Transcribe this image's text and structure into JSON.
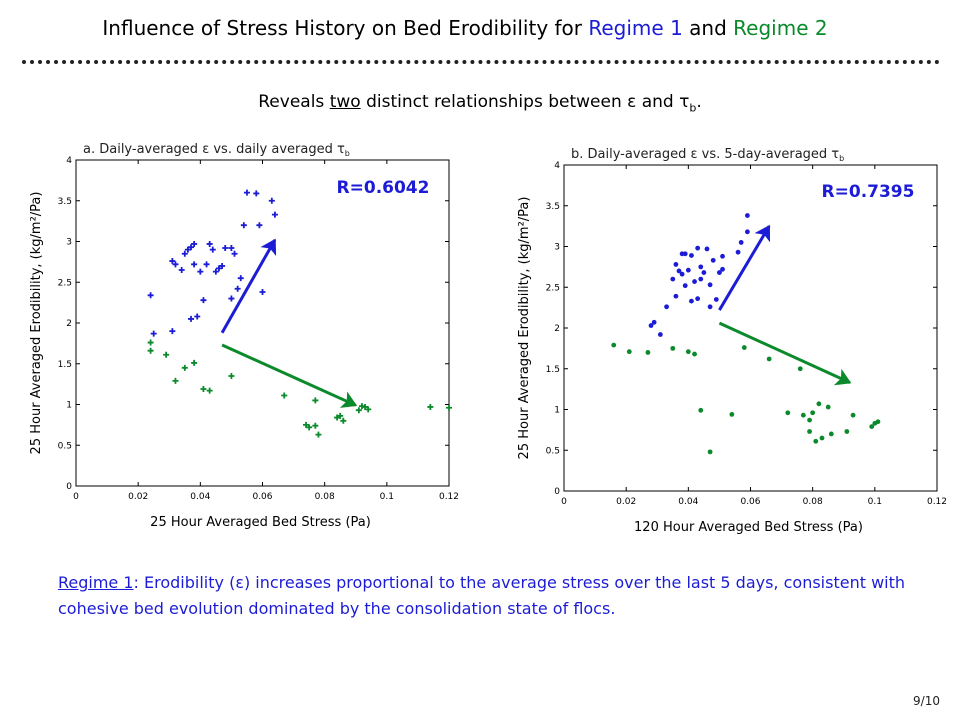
{
  "slide": {
    "title_prefix": "Influence of Stress History on Bed Erodibility for ",
    "title_regime1": "Regime 1",
    "title_and": " and ",
    "title_regime2": "Regime 2",
    "subtitle_prefix": "Reveals ",
    "subtitle_underlined": "two",
    "subtitle_suffix": " distinct relationships between ε and τ",
    "subtitle_sub": "b",
    "subtitle_end": ".",
    "footnote_label": "Regime 1",
    "footnote_text": ": Erodibility (ε) increases proportional to the average stress over the last 5 days, consistent with cohesive bed evolution dominated by the consolidation state of flocs.",
    "page_number": "9/10"
  },
  "colors": {
    "regime1": "#1c1cd6",
    "regime2": "#0a8a2a",
    "r_label": "#1c1cd6"
  },
  "chart_data": [
    {
      "type": "scatter",
      "title": "a. Daily-averaged ε vs. daily averaged τ",
      "title_sub": "b",
      "xlabel": "25 Hour Averaged Bed Stress (Pa)",
      "ylabel": "25 Hour Averaged Erodibility, (kg/m²/Pa)",
      "xlim": [
        0,
        0.12
      ],
      "ylim": [
        0,
        4
      ],
      "xticks": [
        "0",
        "0.02",
        "0.04",
        "0.06",
        "0.08",
        "0.1",
        "0.12"
      ],
      "yticks": [
        "0",
        "0.5",
        "1",
        "1.5",
        "2",
        "2.5",
        "3",
        "3.5",
        "4"
      ],
      "marker": "plus",
      "annotation": "R=0.6042",
      "series": [
        {
          "color_key": "regime1",
          "points": [
            [
              0.024,
              2.34
            ],
            [
              0.025,
              1.87
            ],
            [
              0.031,
              1.9
            ],
            [
              0.031,
              2.76
            ],
            [
              0.032,
              2.72
            ],
            [
              0.034,
              2.65
            ],
            [
              0.035,
              2.85
            ],
            [
              0.036,
              2.9
            ],
            [
              0.037,
              2.93
            ],
            [
              0.038,
              2.97
            ],
            [
              0.037,
              2.05
            ],
            [
              0.038,
              2.72
            ],
            [
              0.039,
              2.08
            ],
            [
              0.04,
              2.63
            ],
            [
              0.041,
              2.28
            ],
            [
              0.042,
              2.72
            ],
            [
              0.043,
              2.97
            ],
            [
              0.044,
              2.9
            ],
            [
              0.045,
              2.63
            ],
            [
              0.046,
              2.67
            ],
            [
              0.047,
              2.7
            ],
            [
              0.048,
              2.92
            ],
            [
              0.05,
              2.92
            ],
            [
              0.05,
              2.3
            ],
            [
              0.051,
              2.85
            ],
            [
              0.052,
              2.42
            ],
            [
              0.053,
              2.55
            ],
            [
              0.054,
              3.2
            ],
            [
              0.055,
              3.6
            ],
            [
              0.058,
              3.59
            ],
            [
              0.059,
              3.2
            ],
            [
              0.06,
              2.38
            ],
            [
              0.063,
              3.5
            ],
            [
              0.064,
              3.33
            ]
          ]
        },
        {
          "color_key": "regime2",
          "points": [
            [
              0.024,
              1.66
            ],
            [
              0.024,
              1.76
            ],
            [
              0.029,
              1.61
            ],
            [
              0.032,
              1.29
            ],
            [
              0.035,
              1.45
            ],
            [
              0.038,
              1.51
            ],
            [
              0.041,
              1.19
            ],
            [
              0.043,
              1.17
            ],
            [
              0.05,
              1.35
            ],
            [
              0.067,
              1.11
            ],
            [
              0.074,
              0.75
            ],
            [
              0.075,
              0.72
            ],
            [
              0.077,
              1.05
            ],
            [
              0.077,
              0.74
            ],
            [
              0.078,
              0.63
            ],
            [
              0.084,
              0.84
            ],
            [
              0.085,
              0.86
            ],
            [
              0.086,
              0.8
            ],
            [
              0.091,
              0.93
            ],
            [
              0.092,
              0.98
            ],
            [
              0.093,
              0.97
            ],
            [
              0.094,
              0.94
            ],
            [
              0.114,
              0.97
            ],
            [
              0.12,
              0.96
            ]
          ]
        }
      ],
      "arrows": [
        {
          "color_key": "regime1",
          "from": [
            0.047,
            1.88
          ],
          "to": [
            0.064,
            3.02
          ]
        },
        {
          "color_key": "regime2",
          "from": [
            0.047,
            1.73
          ],
          "to": [
            0.09,
            0.99
          ]
        }
      ]
    },
    {
      "type": "scatter",
      "title": "b. Daily-averaged ε vs. 5-day-averaged τ",
      "title_sub": "b",
      "xlabel": "120 Hour Averaged Bed Stress (Pa)",
      "ylabel": "25 Hour Averaged Erodibility, (kg/m²/Pa)",
      "xlim": [
        0,
        0.12
      ],
      "ylim": [
        0,
        4
      ],
      "xticks": [
        "0",
        "0.02",
        "0.04",
        "0.06",
        "0.08",
        "0.1",
        "0.12"
      ],
      "yticks": [
        "0",
        "0.5",
        "1",
        "1.5",
        "2",
        "2.5",
        "3",
        "3.5",
        "4"
      ],
      "marker": "dot",
      "annotation": "R=0.7395",
      "series": [
        {
          "color_key": "regime1",
          "points": [
            [
              0.028,
              2.03
            ],
            [
              0.029,
              2.07
            ],
            [
              0.031,
              1.92
            ],
            [
              0.033,
              2.26
            ],
            [
              0.035,
              2.6
            ],
            [
              0.036,
              2.39
            ],
            [
              0.036,
              2.78
            ],
            [
              0.037,
              2.7
            ],
            [
              0.038,
              2.91
            ],
            [
              0.038,
              2.66
            ],
            [
              0.039,
              2.52
            ],
            [
              0.039,
              2.91
            ],
            [
              0.04,
              2.71
            ],
            [
              0.041,
              2.89
            ],
            [
              0.041,
              2.33
            ],
            [
              0.042,
              2.57
            ],
            [
              0.043,
              2.98
            ],
            [
              0.043,
              2.36
            ],
            [
              0.044,
              2.75
            ],
            [
              0.044,
              2.6
            ],
            [
              0.045,
              2.68
            ],
            [
              0.046,
              2.97
            ],
            [
              0.047,
              2.26
            ],
            [
              0.047,
              2.53
            ],
            [
              0.048,
              2.83
            ],
            [
              0.049,
              2.35
            ],
            [
              0.05,
              2.68
            ],
            [
              0.051,
              2.72
            ],
            [
              0.051,
              2.88
            ],
            [
              0.056,
              2.93
            ],
            [
              0.057,
              3.05
            ],
            [
              0.059,
              3.38
            ],
            [
              0.059,
              3.18
            ]
          ]
        },
        {
          "color_key": "regime2",
          "points": [
            [
              0.016,
              1.79
            ],
            [
              0.021,
              1.71
            ],
            [
              0.027,
              1.7
            ],
            [
              0.035,
              1.75
            ],
            [
              0.04,
              1.71
            ],
            [
              0.042,
              1.68
            ],
            [
              0.044,
              0.99
            ],
            [
              0.047,
              0.48
            ],
            [
              0.054,
              0.94
            ],
            [
              0.058,
              1.76
            ],
            [
              0.066,
              1.62
            ],
            [
              0.072,
              0.96
            ],
            [
              0.076,
              1.5
            ],
            [
              0.077,
              0.93
            ],
            [
              0.079,
              0.87
            ],
            [
              0.079,
              0.73
            ],
            [
              0.08,
              0.96
            ],
            [
              0.081,
              0.61
            ],
            [
              0.082,
              1.07
            ],
            [
              0.083,
              0.65
            ],
            [
              0.085,
              1.03
            ],
            [
              0.086,
              0.7
            ],
            [
              0.091,
              0.73
            ],
            [
              0.093,
              0.93
            ],
            [
              0.099,
              0.79
            ],
            [
              0.1,
              0.83
            ],
            [
              0.101,
              0.85
            ]
          ]
        }
      ],
      "arrows": [
        {
          "color_key": "regime1",
          "from": [
            0.05,
            2.22
          ],
          "to": [
            0.066,
            3.25
          ]
        },
        {
          "color_key": "regime2",
          "from": [
            0.05,
            2.06
          ],
          "to": [
            0.092,
            1.33
          ]
        }
      ]
    }
  ]
}
